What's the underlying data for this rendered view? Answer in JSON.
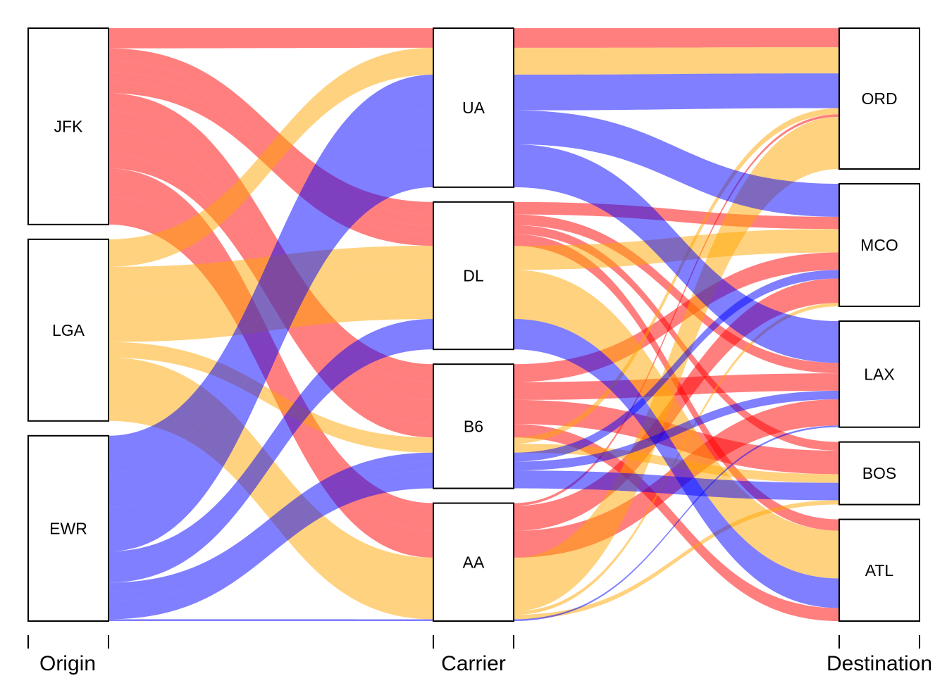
{
  "chart_data": {
    "type": "alluvial",
    "title": "",
    "axes": [
      {
        "key": "origin",
        "label": "Origin",
        "categories": [
          "JFK",
          "LGA",
          "EWR"
        ]
      },
      {
        "key": "carrier",
        "label": "Carrier",
        "categories": [
          "UA",
          "DL",
          "B6",
          "AA"
        ]
      },
      {
        "key": "dest",
        "label": "Destination",
        "categories": [
          "ORD",
          "MCO",
          "LAX",
          "BOS",
          "ATL"
        ]
      }
    ],
    "colors": {
      "JFK": "#ff0000",
      "LGA": "#ffa500",
      "EWR": "#0000ff"
    },
    "flow_opacity": 0.5,
    "flows": [
      {
        "origin": "JFK",
        "carrier": "UA",
        "dest": "ORD",
        "value": 22
      },
      {
        "origin": "JFK",
        "carrier": "DL",
        "dest": "MCO",
        "value": 14
      },
      {
        "origin": "JFK",
        "carrier": "DL",
        "dest": "LAX",
        "value": 12
      },
      {
        "origin": "JFK",
        "carrier": "DL",
        "dest": "BOS",
        "value": 10
      },
      {
        "origin": "JFK",
        "carrier": "DL",
        "dest": "ATL",
        "value": 13
      },
      {
        "origin": "JFK",
        "carrier": "B6",
        "dest": "MCO",
        "value": 20
      },
      {
        "origin": "JFK",
        "carrier": "B6",
        "dest": "LAX",
        "value": 20
      },
      {
        "origin": "JFK",
        "carrier": "B6",
        "dest": "BOS",
        "value": 27
      },
      {
        "origin": "JFK",
        "carrier": "B6",
        "dest": "ATL",
        "value": 15
      },
      {
        "origin": "JFK",
        "carrier": "AA",
        "dest": "ORD",
        "value": 3
      },
      {
        "origin": "JFK",
        "carrier": "AA",
        "dest": "MCO",
        "value": 28
      },
      {
        "origin": "JFK",
        "carrier": "AA",
        "dest": "LAX",
        "value": 30
      },
      {
        "origin": "LGA",
        "carrier": "UA",
        "dest": "ORD",
        "value": 30
      },
      {
        "origin": "LGA",
        "carrier": "DL",
        "dest": "MCO",
        "value": 27
      },
      {
        "origin": "LGA",
        "carrier": "DL",
        "dest": "ATL",
        "value": 55
      },
      {
        "origin": "LGA",
        "carrier": "B6",
        "dest": "ORD",
        "value": 7
      },
      {
        "origin": "LGA",
        "carrier": "B6",
        "dest": "BOS",
        "value": 10
      },
      {
        "origin": "LGA",
        "carrier": "AA",
        "dest": "ORD",
        "value": 60
      },
      {
        "origin": "LGA",
        "carrier": "AA",
        "dest": "MCO",
        "value": 4
      },
      {
        "origin": "LGA",
        "carrier": "AA",
        "dest": "BOS",
        "value": 5
      },
      {
        "origin": "EWR",
        "carrier": "UA",
        "dest": "ORD",
        "value": 40
      },
      {
        "origin": "EWR",
        "carrier": "UA",
        "dest": "MCO",
        "value": 38
      },
      {
        "origin": "EWR",
        "carrier": "UA",
        "dest": "LAX",
        "value": 48
      },
      {
        "origin": "EWR",
        "carrier": "DL",
        "dest": "ATL",
        "value": 34
      },
      {
        "origin": "EWR",
        "carrier": "B6",
        "dest": "MCO",
        "value": 10
      },
      {
        "origin": "EWR",
        "carrier": "B6",
        "dest": "LAX",
        "value": 10
      },
      {
        "origin": "EWR",
        "carrier": "B6",
        "dest": "BOS",
        "value": 20
      },
      {
        "origin": "EWR",
        "carrier": "AA",
        "dest": "LAX",
        "value": 2
      }
    ]
  }
}
